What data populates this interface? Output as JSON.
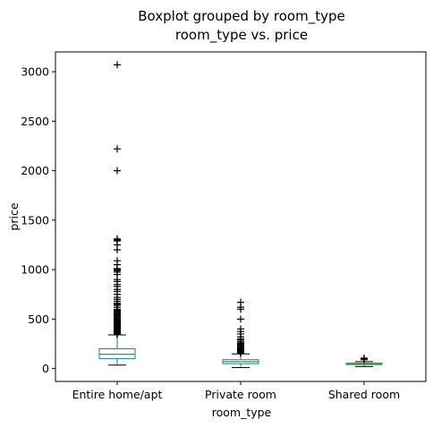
{
  "chart_data": {
    "type": "box",
    "title": "Boxplot grouped by room_type",
    "subtitle": "room_type vs. price",
    "xlabel": "room_type",
    "ylabel": "price",
    "ylim": [
      -130,
      3200
    ],
    "yticks": [
      0,
      500,
      1000,
      1500,
      2000,
      2500,
      3000
    ],
    "grid": false,
    "colors": {
      "box": "#1f77b4",
      "median": "#2ca02c",
      "whisker": "#000000",
      "flier": "#000000"
    },
    "categories": [
      "Entire home/apt",
      "Private room",
      "Shared room"
    ],
    "boxes": [
      {
        "category": "Entire home/apt",
        "whisker_low": 35,
        "q1": 100,
        "median": 145,
        "q3": 200,
        "whisker_high": 340,
        "fliers": [
          345,
          350,
          355,
          360,
          365,
          370,
          375,
          380,
          385,
          390,
          395,
          400,
          405,
          410,
          415,
          420,
          425,
          430,
          435,
          440,
          445,
          450,
          455,
          460,
          465,
          470,
          475,
          480,
          485,
          490,
          495,
          500,
          510,
          520,
          530,
          540,
          550,
          560,
          570,
          580,
          590,
          600,
          620,
          640,
          650,
          660,
          680,
          700,
          720,
          750,
          780,
          800,
          830,
          850,
          880,
          900,
          950,
          975,
          990,
          1000,
          1010,
          1050,
          1090,
          1200,
          1250,
          1290,
          1300,
          1310,
          2000,
          2220,
          3070
        ]
      },
      {
        "category": "Private room",
        "whisker_low": 10,
        "q1": 50,
        "median": 70,
        "q3": 90,
        "whisker_high": 148,
        "fliers": [
          155,
          160,
          165,
          170,
          175,
          180,
          185,
          190,
          195,
          200,
          210,
          220,
          230,
          240,
          250,
          260,
          275,
          290,
          300,
          320,
          350,
          375,
          400,
          500,
          600,
          620,
          670
        ]
      },
      {
        "category": "Shared room",
        "whisker_low": 20,
        "q1": 40,
        "median": 50,
        "q3": 55,
        "whisker_high": 70,
        "fliers": [
          90,
          100,
          105
        ]
      }
    ]
  }
}
